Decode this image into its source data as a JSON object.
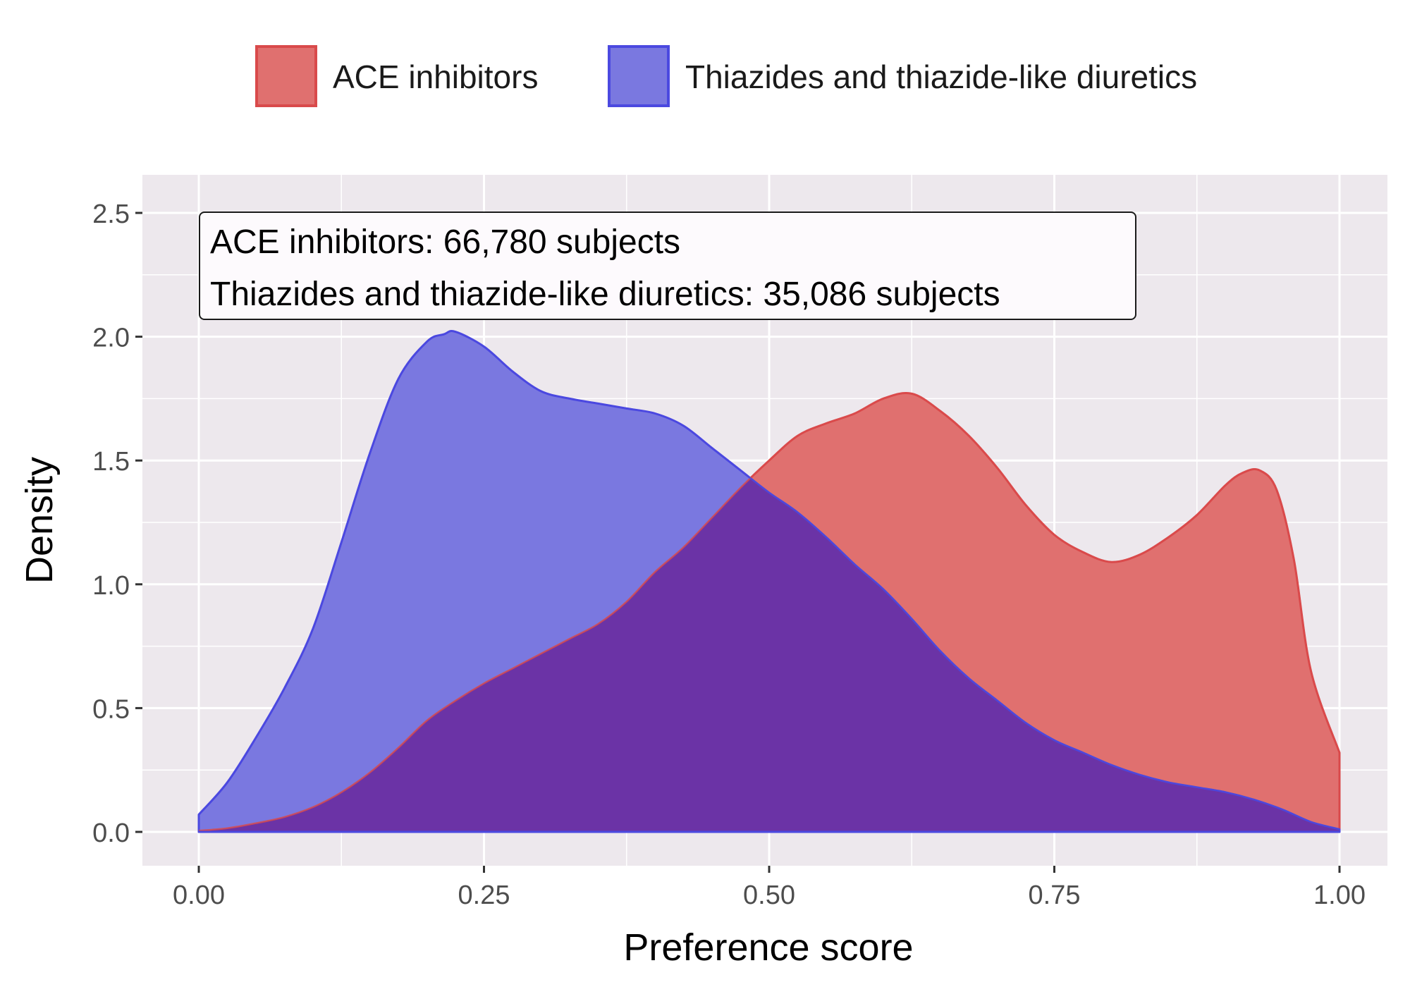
{
  "legend": [
    {
      "label": "ACE inhibitors",
      "fill": "#e0706f",
      "stroke": "#d94a4b"
    },
    {
      "label": "Thiazides and thiazide-like diuretics",
      "fill": "#7a78e0",
      "stroke": "#4b49e0"
    }
  ],
  "annotation": {
    "line1": "ACE inhibitors: 66,780 subjects",
    "line2": "Thiazides and thiazide-like diuretics: 35,086 subjects"
  },
  "chart_data": {
    "type": "area",
    "xlabel": "Preference score",
    "ylabel": "Density",
    "xlim": [
      0,
      1
    ],
    "ylim": [
      0,
      2.5
    ],
    "x_ticks": [
      "0.00",
      "0.25",
      "0.50",
      "0.75",
      "1.00"
    ],
    "y_ticks": [
      "0.0",
      "0.5",
      "1.0",
      "1.5",
      "2.0",
      "2.5"
    ],
    "grid": true,
    "legend_position": "top",
    "colors": {
      "panel": "#ede8ed",
      "grid": "#ffffff",
      "overlap": "#6b33a6"
    },
    "series": [
      {
        "name": "ACE inhibitors",
        "x": [
          0,
          0.025,
          0.05,
          0.075,
          0.1,
          0.125,
          0.15,
          0.175,
          0.2,
          0.225,
          0.25,
          0.275,
          0.3,
          0.325,
          0.35,
          0.375,
          0.4,
          0.425,
          0.45,
          0.475,
          0.5,
          0.525,
          0.55,
          0.575,
          0.6,
          0.625,
          0.65,
          0.675,
          0.7,
          0.725,
          0.75,
          0.775,
          0.8,
          0.825,
          0.85,
          0.875,
          0.9,
          0.915,
          0.93,
          0.945,
          0.96,
          0.975,
          1.0
        ],
        "y": [
          0.005,
          0.015,
          0.035,
          0.06,
          0.1,
          0.16,
          0.24,
          0.34,
          0.45,
          0.53,
          0.6,
          0.66,
          0.72,
          0.78,
          0.84,
          0.93,
          1.05,
          1.15,
          1.27,
          1.39,
          1.5,
          1.6,
          1.65,
          1.69,
          1.75,
          1.77,
          1.7,
          1.6,
          1.47,
          1.32,
          1.2,
          1.13,
          1.09,
          1.12,
          1.19,
          1.28,
          1.4,
          1.45,
          1.46,
          1.38,
          1.1,
          0.65,
          0.32
        ]
      },
      {
        "name": "Thiazides and thiazide-like diuretics",
        "x": [
          0,
          0.025,
          0.05,
          0.075,
          0.1,
          0.125,
          0.15,
          0.175,
          0.2,
          0.215,
          0.225,
          0.25,
          0.275,
          0.3,
          0.325,
          0.35,
          0.375,
          0.4,
          0.425,
          0.45,
          0.475,
          0.5,
          0.525,
          0.55,
          0.575,
          0.6,
          0.625,
          0.65,
          0.675,
          0.7,
          0.725,
          0.75,
          0.775,
          0.8,
          0.825,
          0.85,
          0.875,
          0.9,
          0.925,
          0.95,
          0.975,
          1.0
        ],
        "y": [
          0.07,
          0.2,
          0.38,
          0.58,
          0.82,
          1.17,
          1.53,
          1.83,
          1.98,
          2.01,
          2.02,
          1.96,
          1.86,
          1.78,
          1.75,
          1.73,
          1.71,
          1.69,
          1.64,
          1.55,
          1.46,
          1.37,
          1.29,
          1.19,
          1.08,
          0.98,
          0.86,
          0.73,
          0.62,
          0.53,
          0.44,
          0.37,
          0.32,
          0.27,
          0.23,
          0.2,
          0.18,
          0.16,
          0.13,
          0.09,
          0.04,
          0.01
        ]
      }
    ]
  }
}
